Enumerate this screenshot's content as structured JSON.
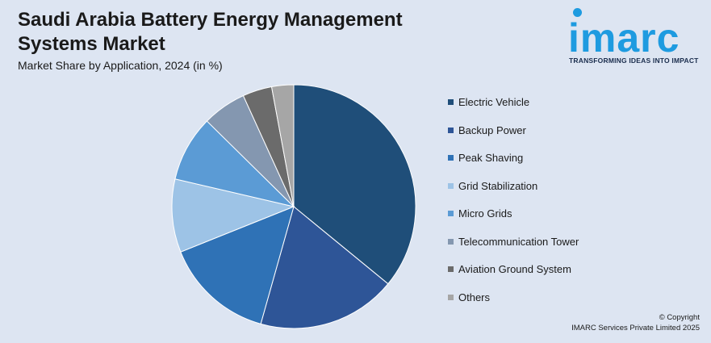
{
  "header": {
    "title": "Saudi Arabia Battery Energy Management Systems Market",
    "subtitle": "Market Share by Application, 2024 (in %)"
  },
  "logo": {
    "word": "imarc",
    "tagline": "TRANSFORMING IDEAS INTO IMPACT"
  },
  "footer": {
    "copyright_line1": "© Copyright",
    "copyright_line2": "IMARC Services Private Limited 2025"
  },
  "chart_data": {
    "type": "pie",
    "title": "Saudi Arabia Battery Energy Management Systems Market",
    "subtitle": "Market Share by Application, 2024 (in %)",
    "legend_position": "right",
    "slices": [
      {
        "label": "Electric Vehicle",
        "value": 37,
        "color": "#1f4e79"
      },
      {
        "label": "Backup Power",
        "value": 19,
        "color": "#2e5597"
      },
      {
        "label": "Peak Shaving",
        "value": 15,
        "color": "#2f72b6"
      },
      {
        "label": "Grid Stabilization",
        "value": 10,
        "color": "#9dc3e6"
      },
      {
        "label": "Micro Grids",
        "value": 9,
        "color": "#5b9bd5"
      },
      {
        "label": "Telecommunication Tower",
        "value": 6,
        "color": "#8497b0"
      },
      {
        "label": "Aviation Ground System",
        "value": 4,
        "color": "#6b6b6b"
      },
      {
        "label": "Others",
        "value": 3,
        "color": "#a6a6a6"
      }
    ]
  }
}
